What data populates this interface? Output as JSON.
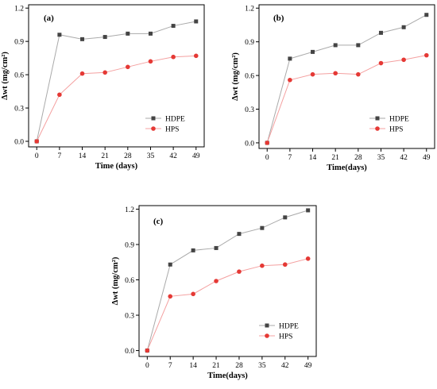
{
  "chart_data": [
    {
      "type": "line",
      "panel_label": "(a)",
      "x": [
        0,
        7,
        14,
        21,
        28,
        35,
        42,
        49
      ],
      "xlabel": "Time (days)",
      "ylabel": "Δwt (mg/cm²)",
      "yticks": [
        "0.0",
        "0.3",
        "0.6",
        "0.9",
        "1.2"
      ],
      "ylim": [
        -0.05,
        1.23
      ],
      "series": [
        {
          "name": "HDPE",
          "values": [
            0.0,
            0.96,
            0.92,
            0.94,
            0.97,
            0.97,
            1.04,
            1.08
          ],
          "color": "#444444",
          "line_color": "#aaaaaa",
          "marker": "square"
        },
        {
          "name": "HPS",
          "values": [
            0.0,
            0.42,
            0.61,
            0.62,
            0.67,
            0.72,
            0.76,
            0.77
          ],
          "color": "#e53935",
          "line_color": "#f4a0a0",
          "marker": "circle"
        }
      ],
      "legend": "center-right"
    },
    {
      "type": "line",
      "panel_label": "(b)",
      "x": [
        0,
        7,
        14,
        21,
        28,
        35,
        42,
        49
      ],
      "xlabel": "Time(days)",
      "ylabel": "Δwt (mg/cm²)",
      "yticks": [
        "0.0",
        "0.3",
        "0.6",
        "0.9",
        "1.2"
      ],
      "ylim": [
        -0.05,
        1.23
      ],
      "series": [
        {
          "name": "HDPE",
          "values": [
            0.0,
            0.75,
            0.81,
            0.87,
            0.87,
            0.98,
            1.03,
            1.14
          ],
          "color": "#444444",
          "line_color": "#aaaaaa",
          "marker": "square"
        },
        {
          "name": "HPS",
          "values": [
            0.0,
            0.56,
            0.61,
            0.62,
            0.61,
            0.71,
            0.74,
            0.78
          ],
          "color": "#e53935",
          "line_color": "#f4a0a0",
          "marker": "circle"
        }
      ],
      "legend": "center-right"
    },
    {
      "type": "line",
      "panel_label": "(c)",
      "x": [
        0,
        7,
        14,
        21,
        28,
        35,
        42,
        49
      ],
      "xlabel": "Time(days)",
      "ylabel": "Δwt (mg/cm²)",
      "yticks": [
        "0.0",
        "0.3",
        "0.6",
        "0.9",
        "1.2"
      ],
      "ylim": [
        -0.05,
        1.23
      ],
      "series": [
        {
          "name": "HDPE",
          "values": [
            0.0,
            0.73,
            0.85,
            0.87,
            0.99,
            1.04,
            1.13,
            1.19
          ],
          "color": "#444444",
          "line_color": "#aaaaaa",
          "marker": "square"
        },
        {
          "name": "HPS",
          "values": [
            0.0,
            0.46,
            0.48,
            0.59,
            0.67,
            0.72,
            0.73,
            0.78
          ],
          "color": "#e53935",
          "line_color": "#f4a0a0",
          "marker": "circle"
        }
      ],
      "legend": "bottom-right"
    }
  ]
}
